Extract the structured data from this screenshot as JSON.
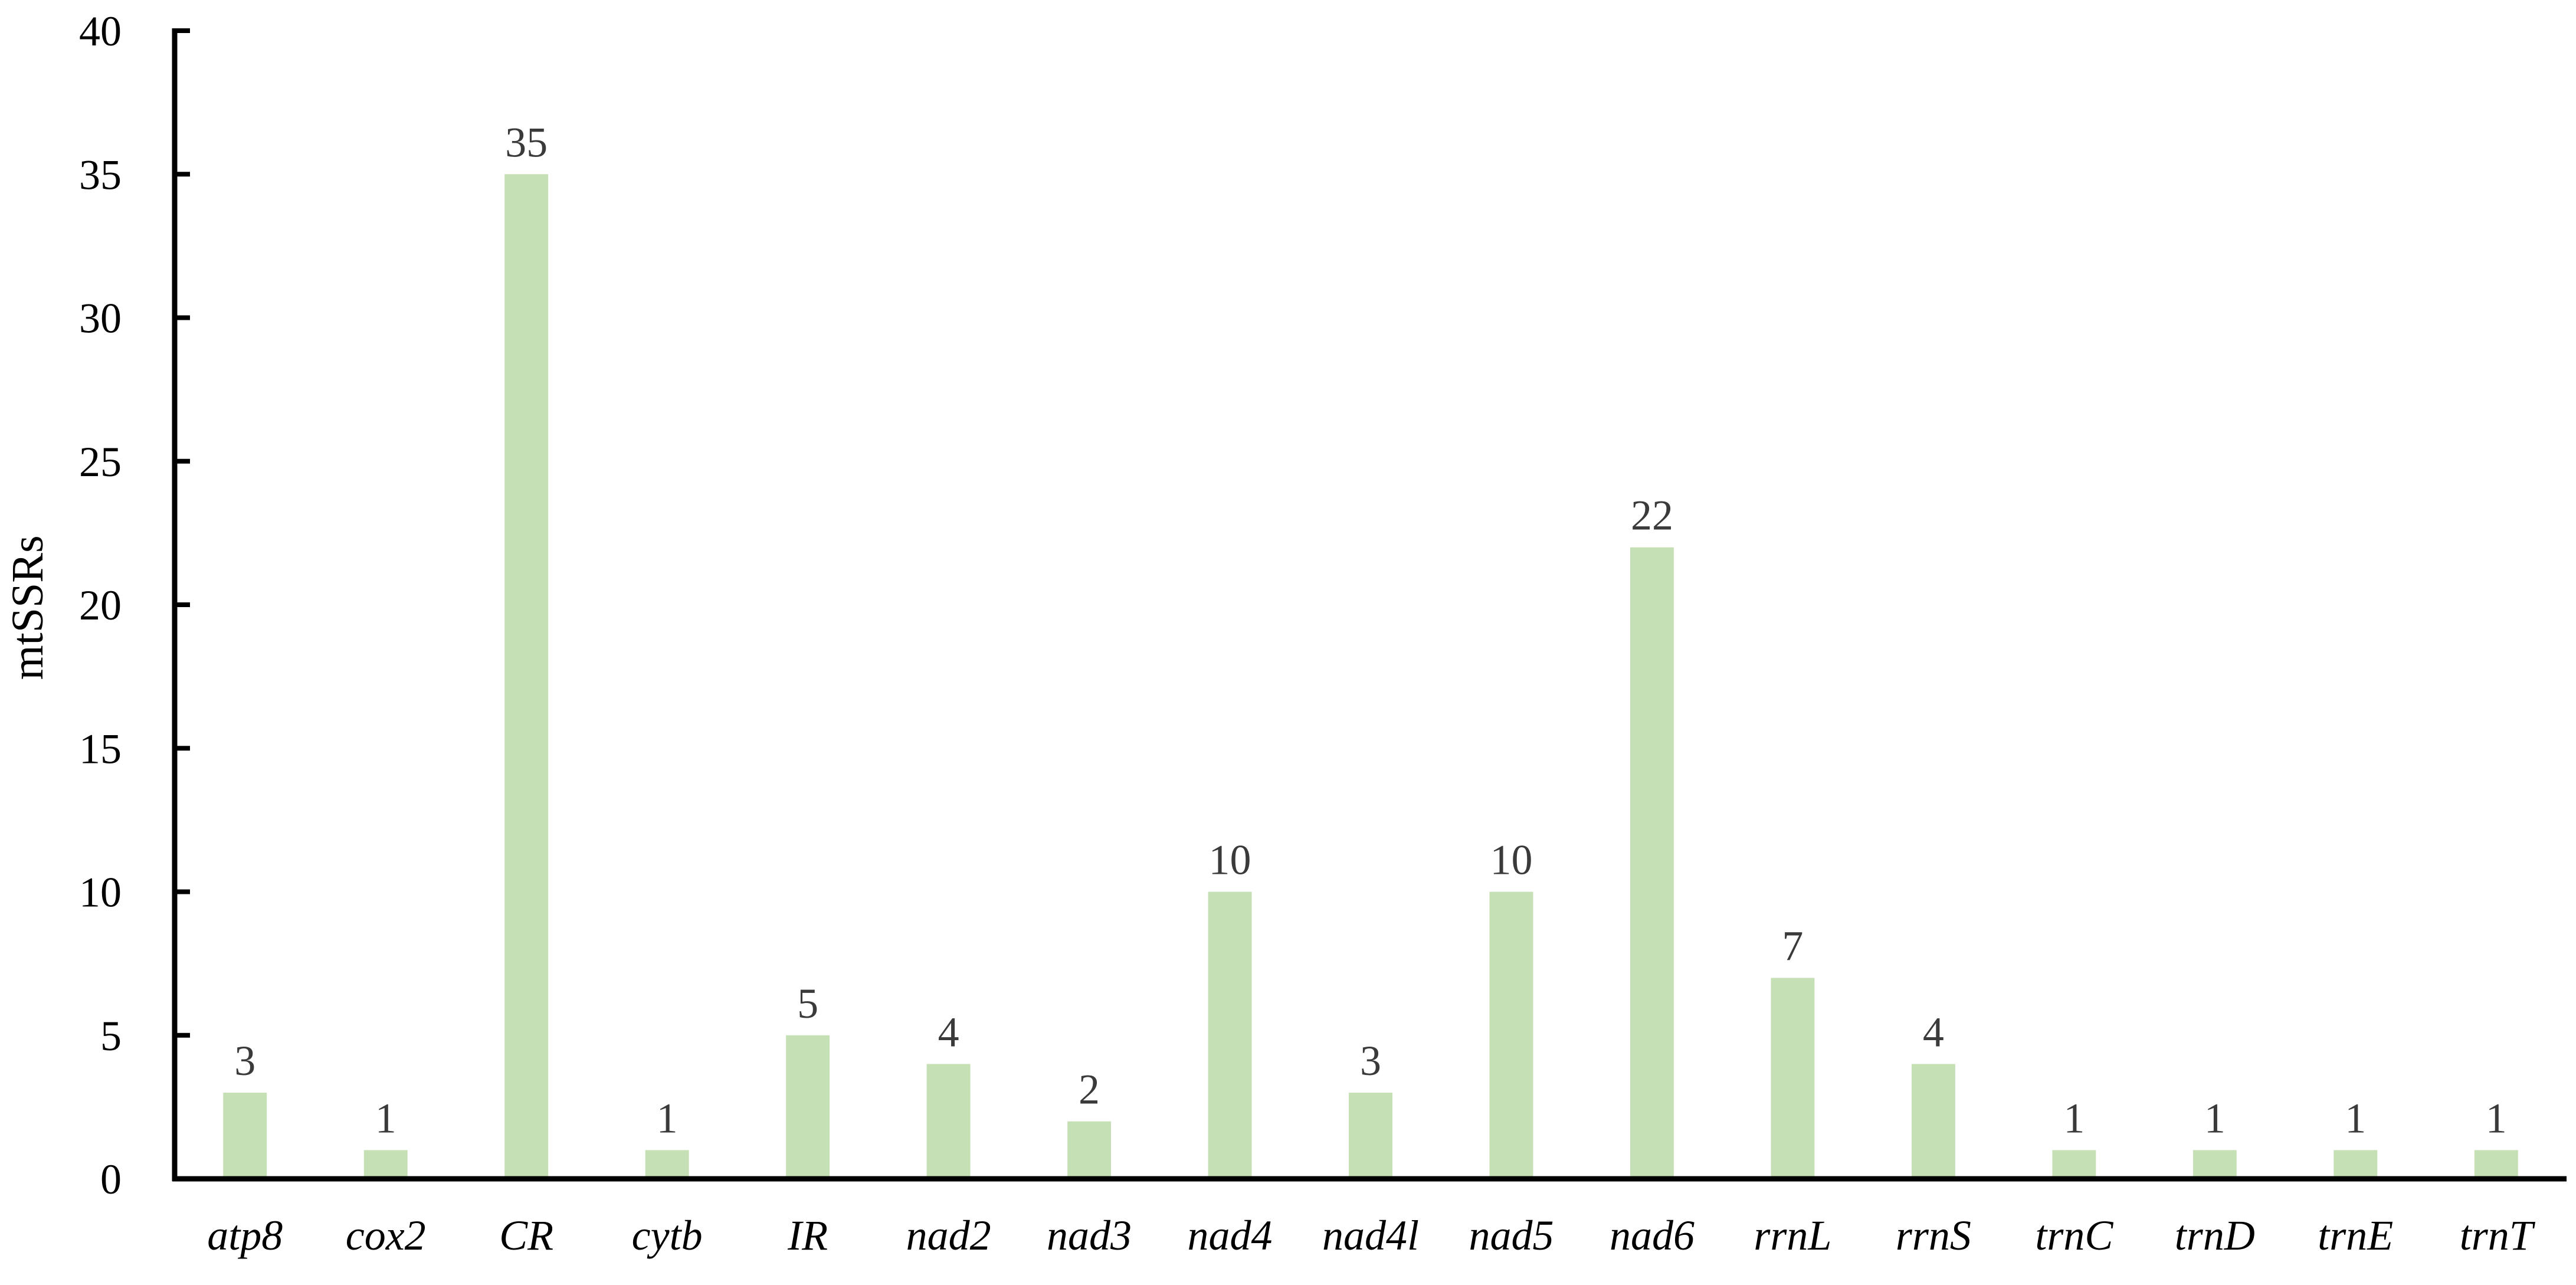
{
  "chart_data": {
    "type": "bar",
    "categories": [
      "atp8",
      "cox2",
      "CR",
      "cytb",
      "IR",
      "nad2",
      "nad3",
      "nad4",
      "nad4l",
      "nad5",
      "nad6",
      "rrnL",
      "rrnS",
      "trnC",
      "trnD",
      "trnE",
      "trnT"
    ],
    "values": [
      3,
      1,
      35,
      1,
      5,
      4,
      2,
      10,
      3,
      10,
      22,
      7,
      4,
      1,
      1,
      1,
      1
    ],
    "title": "",
    "xlabel": "",
    "ylabel": "mtSSRs",
    "ylim": [
      0,
      40
    ],
    "yticks": [
      0,
      5,
      10,
      15,
      20,
      25,
      30,
      35,
      40
    ],
    "data_labels": true,
    "grid": false,
    "legend": "none",
    "colors": {
      "bar": "#c5e0b4",
      "axis": "#000000",
      "data_label": "#3a3a3a"
    }
  }
}
